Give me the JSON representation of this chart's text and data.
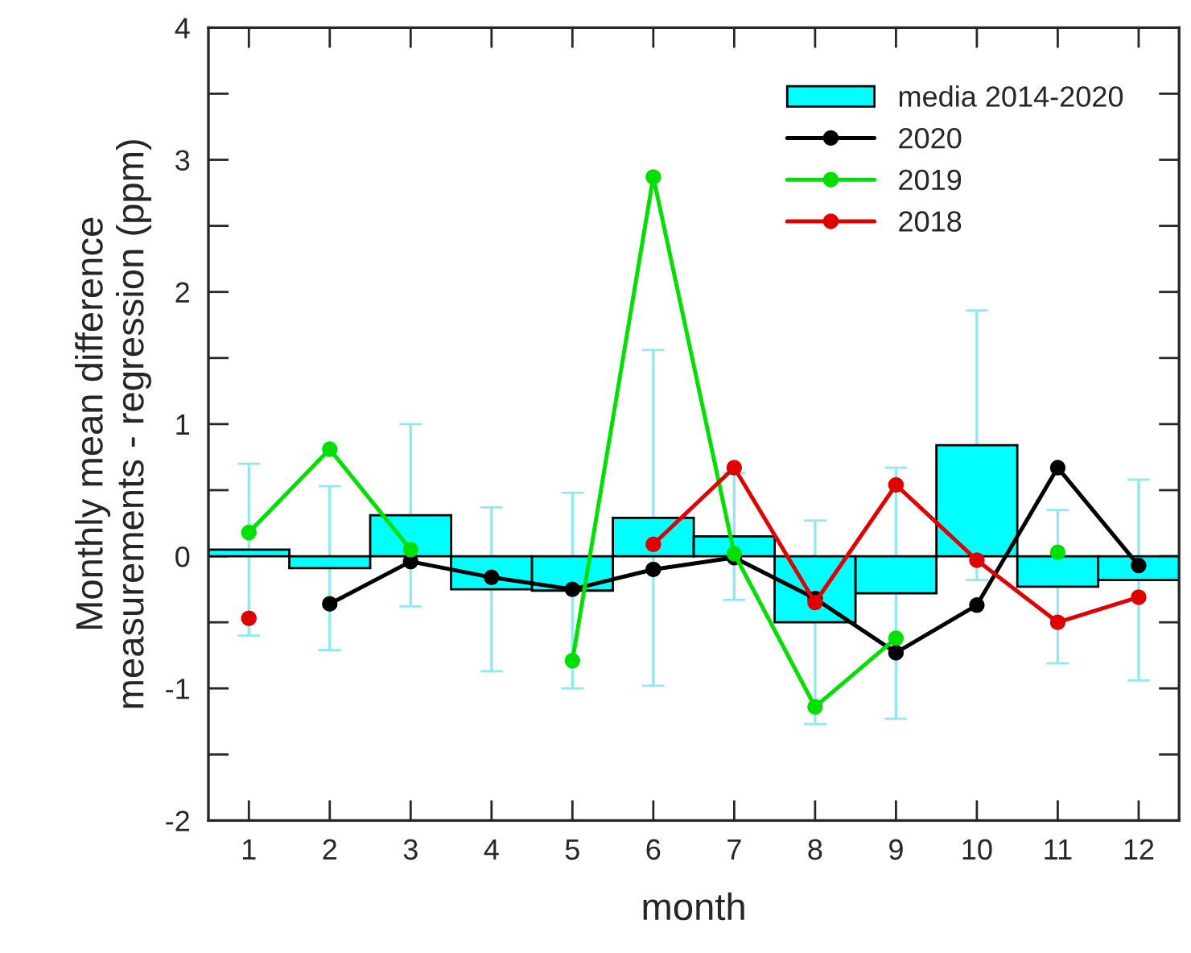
{
  "chart_data": {
    "type": "bar",
    "xlabel": "month",
    "ylabel": "Monthly mean difference\nmeasurements - regression (ppm)",
    "x": [
      1,
      2,
      3,
      4,
      5,
      6,
      7,
      8,
      9,
      10,
      11,
      12
    ],
    "xlim": [
      0.5,
      12.5
    ],
    "xticks": [
      1,
      2,
      3,
      4,
      5,
      6,
      7,
      8,
      9,
      10,
      11,
      12
    ],
    "ylim": [
      -2,
      4
    ],
    "yticks": [
      -2,
      {
        "value": -1.5,
        "label": null
      },
      -1,
      {
        "value": -0.5,
        "label": null
      },
      0,
      {
        "value": 0.5,
        "label": null
      },
      1,
      {
        "value": 1.5,
        "label": null
      },
      2,
      {
        "value": 2.5,
        "label": null
      },
      3,
      {
        "value": 3.5,
        "label": null
      },
      4
    ],
    "series": [
      {
        "name": "media 2014-2020",
        "color": "#00ffff",
        "values": [
          0.05,
          -0.09,
          0.31,
          -0.25,
          -0.26,
          0.29,
          0.15,
          -0.5,
          -0.28,
          0.84,
          -0.23,
          -0.18
        ],
        "errors": [
          0.65,
          0.62,
          0.69,
          0.62,
          0.74,
          1.27,
          0.48,
          0.77,
          0.95,
          1.02,
          0.58,
          0.76
        ]
      },
      {
        "type": "line",
        "name": "2020",
        "color": "#000000",
        "values": [
          null,
          -0.36,
          -0.04,
          -0.16,
          -0.25,
          -0.1,
          -0.01,
          -0.32,
          -0.73,
          -0.37,
          0.67,
          -0.07
        ]
      },
      {
        "type": "line",
        "name": "2019",
        "color": "#00e000",
        "values": [
          0.18,
          0.81,
          0.05,
          null,
          -0.79,
          2.87,
          0.02,
          -1.14,
          -0.62,
          null,
          0.03,
          null
        ]
      },
      {
        "type": "line",
        "name": "2018",
        "color": "#e00000",
        "values": [
          -0.47,
          null,
          null,
          null,
          null,
          0.09,
          0.67,
          -0.35,
          0.54,
          -0.03,
          -0.5,
          -0.31
        ]
      }
    ],
    "marker": "circle",
    "line_style": "solid",
    "legend": "top right",
    "grid": false
  }
}
